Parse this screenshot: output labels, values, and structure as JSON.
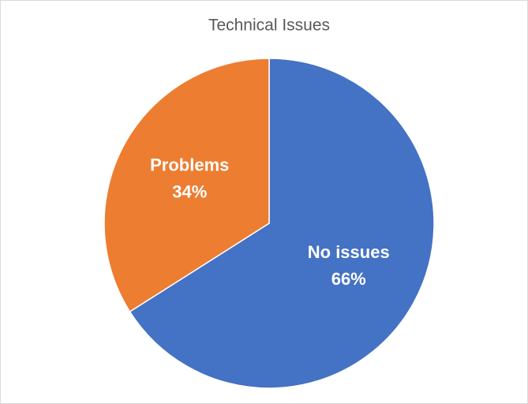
{
  "chart_data": {
    "type": "pie",
    "title": "Technical Issues",
    "categories": [
      "No issues",
      "Problems"
    ],
    "values": [
      66,
      34
    ],
    "value_labels": [
      "66%",
      "34%"
    ],
    "colors": [
      "#4472c4",
      "#ed7d31"
    ]
  }
}
